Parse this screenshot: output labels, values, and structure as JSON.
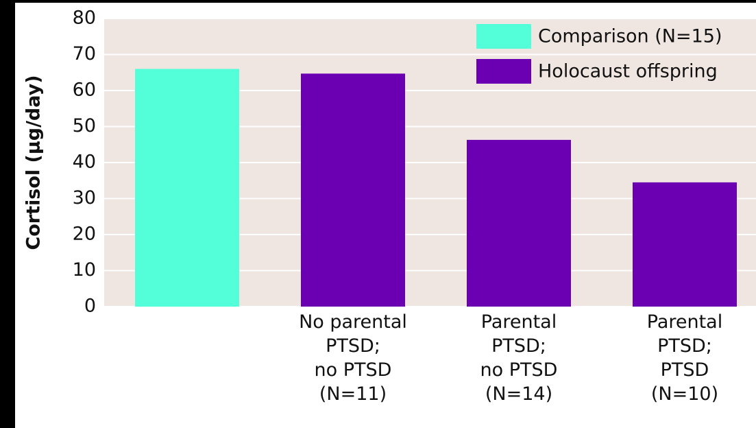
{
  "chart_data": {
    "type": "bar",
    "y_label": "Cortisol (µg/day)",
    "categories": [
      null,
      "No parental\nPTSD;\nno PTSD\n(N=11)",
      "Parental\nPTSD;\nno PTSD\n(N=14)",
      "Parental\nPTSD;\nPTSD\n(N=10)"
    ],
    "series": [
      {
        "name": "Comparison (N=15)",
        "color": "#52ffd9",
        "values": [
          66,
          null,
          null,
          null
        ]
      },
      {
        "name": "Holocaust offspring",
        "color": "#6a00b2",
        "values": [
          null,
          64.7,
          46.3,
          34.5
        ]
      }
    ],
    "ylim": [
      0,
      80
    ],
    "yticks": [
      0,
      10,
      20,
      30,
      40,
      50,
      60,
      70,
      80
    ],
    "grid": true,
    "legend": "top-right"
  }
}
